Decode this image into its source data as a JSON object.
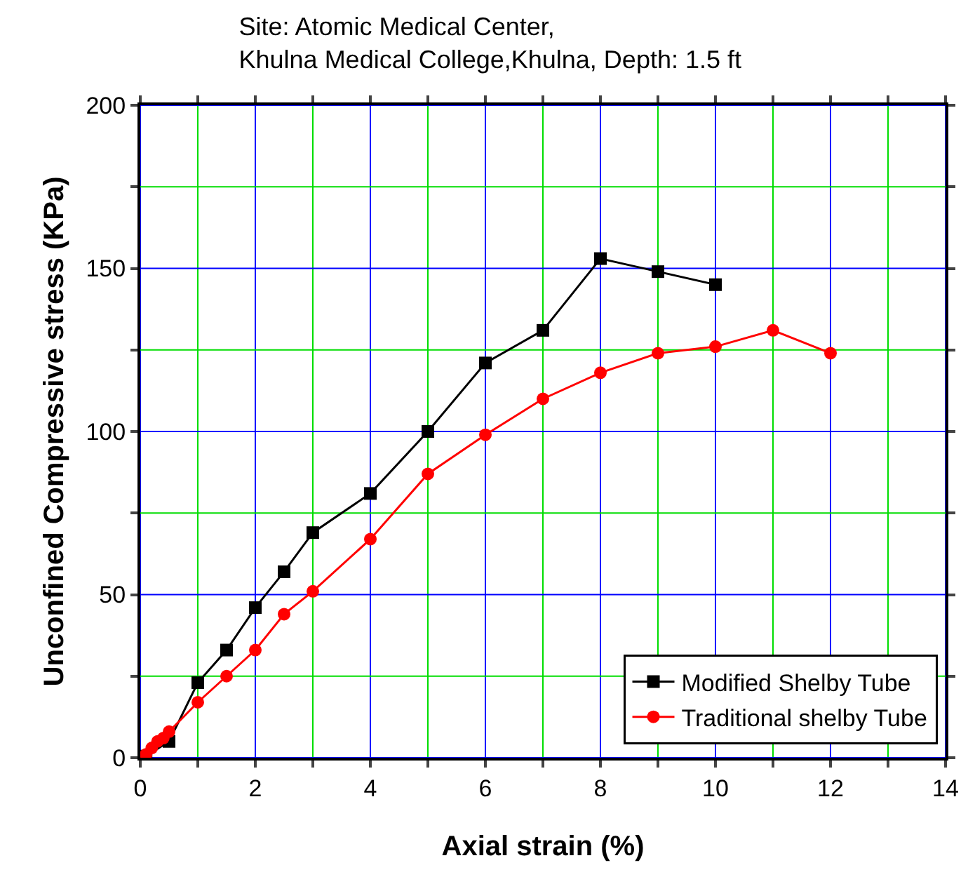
{
  "chart_data": {
    "type": "line",
    "title": "Site: Atomic Medical Center,\nKhulna Medical College,Khulna, Depth: 1.5 ft",
    "xlabel": "Axial strain (%)",
    "ylabel": "Unconfined Compressive stress (KPa)",
    "xlim": [
      0,
      14
    ],
    "xticks": [
      0,
      {
        "value": 1,
        "label": null
      },
      2,
      {
        "value": 3,
        "label": null
      },
      4,
      {
        "value": 5,
        "label": null
      },
      6,
      {
        "value": 7,
        "label": null
      },
      8,
      {
        "value": 9,
        "label": null
      },
      10,
      {
        "value": 11,
        "label": null
      },
      12,
      {
        "value": 13,
        "label": null
      },
      14
    ],
    "ylim": [
      0,
      200
    ],
    "yticks": [
      0,
      {
        "value": 25,
        "label": null
      },
      50,
      {
        "value": 75,
        "label": null
      },
      100,
      {
        "value": 125,
        "label": null
      },
      150,
      {
        "value": 175,
        "label": null
      },
      200
    ],
    "grid": true,
    "legend": "bottom right",
    "line_style": "solid",
    "series": [
      {
        "name": "Modified Shelby Tube",
        "color": "#000000",
        "marker": "square",
        "x": [
          0.1,
          0.2,
          0.3,
          0.4,
          0.5,
          1,
          1.5,
          2,
          2.5,
          3,
          4,
          5,
          6,
          7,
          8,
          9,
          10
        ],
        "values": [
          0.5,
          null,
          null,
          null,
          5,
          23,
          33,
          46,
          57,
          69,
          81,
          100,
          121,
          131,
          153,
          149,
          145
        ]
      },
      {
        "name": "Traditional shelby Tube",
        "color": "#ff0000",
        "marker": "circle",
        "x": [
          0.1,
          0.2,
          0.3,
          0.4,
          0.5,
          1,
          1.5,
          2,
          2.5,
          3,
          4,
          5,
          6,
          7,
          8,
          9,
          10,
          11,
          12
        ],
        "values": [
          1,
          3,
          5,
          6,
          8,
          17,
          25,
          33,
          44,
          51,
          67,
          87,
          99,
          110,
          118,
          124,
          126,
          131,
          124
        ]
      }
    ]
  }
}
